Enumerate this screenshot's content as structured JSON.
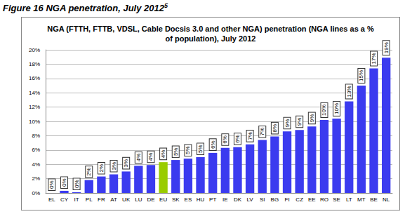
{
  "figure_title": "Figure 16 NGA penetration, July 2012",
  "figure_title_note": "5",
  "chart_data": {
    "type": "bar",
    "title": "NGA (FTTH, FTTB, VDSL, Cable Docsis 3.0 and other NGA) penetration (NGA lines as a %\nof population), July 2012",
    "categories": [
      "EL",
      "CY",
      "IT",
      "PL",
      "FR",
      "AT",
      "UK",
      "LU",
      "DE",
      "EU",
      "SK",
      "ES",
      "HU",
      "PT",
      "IE",
      "DK",
      "LV",
      "SI",
      "BG",
      "FI",
      "CZ",
      "EE",
      "RO",
      "SE",
      "LT",
      "MT",
      "BE",
      "NL"
    ],
    "values": [
      0.0,
      0.3,
      0.1,
      1.8,
      2.3,
      2.6,
      3.0,
      3.8,
      3.9,
      4.3,
      4.6,
      4.8,
      5.0,
      5.6,
      6.3,
      6.4,
      6.8,
      7.4,
      7.9,
      8.6,
      8.8,
      9.3,
      10.2,
      10.4,
      12.8,
      15.0,
      17.4,
      18.9
    ],
    "value_labels": [
      "0%",
      "0%",
      "0%",
      "2%",
      "2%",
      "3%",
      "3%",
      "4%",
      "4%",
      "4%",
      "5%",
      "5%",
      "5%",
      "6%",
      "6%",
      "6%",
      "7%",
      "7%",
      "8%",
      "9%",
      "9%",
      "9%",
      "10%",
      "10%",
      "13%",
      "15%",
      "17%",
      "19%"
    ],
    "colors": [
      "#3b3bef",
      "#3b3bef",
      "#3b3bef",
      "#3b3bef",
      "#3b3bef",
      "#3b3bef",
      "#3b3bef",
      "#3b3bef",
      "#3b3bef",
      "#99cc00",
      "#3b3bef",
      "#3b3bef",
      "#3b3bef",
      "#3b3bef",
      "#3b3bef",
      "#3b3bef",
      "#3b3bef",
      "#3b3bef",
      "#3b3bef",
      "#3b3bef",
      "#3b3bef",
      "#3b3bef",
      "#3b3bef",
      "#3b3bef",
      "#3b3bef",
      "#3b3bef",
      "#3b3bef",
      "#3b3bef"
    ],
    "ylim": [
      0,
      20
    ],
    "yticks": [
      {
        "value": 0,
        "label": "0%"
      },
      {
        "value": 2,
        "label": "2%"
      },
      {
        "value": 4,
        "label": "4%"
      },
      {
        "value": 6,
        "label": "6%"
      },
      {
        "value": 8,
        "label": "8%"
      },
      {
        "value": 10,
        "label": "10%"
      },
      {
        "value": 12,
        "label": "12%"
      },
      {
        "value": 14,
        "label": "14%"
      },
      {
        "value": 16,
        "label": "16%"
      },
      {
        "value": 18,
        "label": "18%"
      },
      {
        "value": 20,
        "label": "20%"
      }
    ],
    "grid": true,
    "data_labels": true
  }
}
